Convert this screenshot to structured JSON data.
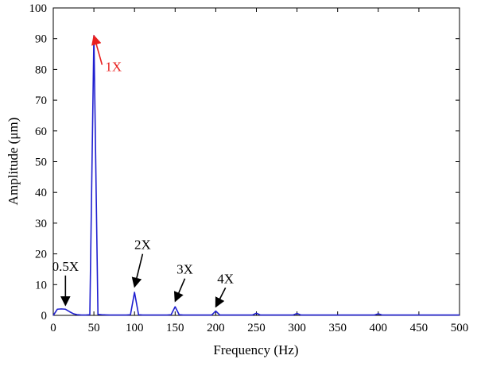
{
  "chart_data": {
    "type": "line",
    "title": "",
    "xlabel": "Frequency (Hz)",
    "ylabel": "Amplitude (μm)",
    "xlim": [
      0,
      500
    ],
    "ylim": [
      0,
      100
    ],
    "xticks": [
      "0",
      "50",
      "100",
      "150",
      "200",
      "250",
      "300",
      "350",
      "400",
      "450",
      "500"
    ],
    "yticks": [
      "0",
      "10",
      "20",
      "30",
      "40",
      "50",
      "60",
      "70",
      "80",
      "90",
      "100"
    ],
    "grid": false,
    "series": [
      {
        "color": "#1f1fd0",
        "x": [
          0,
          5,
          10,
          15,
          20,
          25,
          30,
          35,
          40,
          45,
          50,
          55,
          60,
          65,
          70,
          75,
          80,
          85,
          90,
          95,
          100,
          105,
          110,
          115,
          120,
          125,
          130,
          135,
          140,
          145,
          150,
          155,
          160,
          165,
          170,
          175,
          180,
          185,
          190,
          195,
          200,
          205,
          210,
          215,
          220,
          225,
          230,
          235,
          240,
          245,
          250,
          255,
          260,
          295,
          300,
          305,
          310,
          395,
          400,
          405,
          410,
          500
        ],
        "y": [
          0.0,
          2.0,
          2.1,
          2.0,
          1.2,
          0.5,
          0.2,
          0.1,
          0.1,
          0.2,
          91.0,
          0.3,
          0.2,
          0.15,
          0.1,
          0.1,
          0.1,
          0.1,
          0.1,
          0.2,
          7.5,
          0.2,
          0.1,
          0.1,
          0.1,
          0.1,
          0.1,
          0.1,
          0.1,
          0.2,
          2.8,
          0.2,
          0.1,
          0.1,
          0.1,
          0.1,
          0.1,
          0.1,
          0.1,
          0.1,
          1.4,
          0.1,
          0.1,
          0.1,
          0.1,
          0.1,
          0.1,
          0.1,
          0.1,
          0.1,
          0.7,
          0.1,
          0.1,
          0.1,
          0.6,
          0.1,
          0.1,
          0.1,
          0.5,
          0.1,
          0.1,
          0.1
        ]
      }
    ],
    "annotations": [
      {
        "text": "1X",
        "color": "#e8201f",
        "x": 50,
        "y": 91,
        "tx": 64,
        "ty": 81
      },
      {
        "text": "0.5X",
        "color": "#000000",
        "x": 15,
        "y": 2.5,
        "tx": 15,
        "ty": 14
      },
      {
        "text": "2X",
        "color": "#000000",
        "x": 100,
        "y": 8.5,
        "tx": 110,
        "ty": 21
      },
      {
        "text": "3X",
        "color": "#000000",
        "x": 150,
        "y": 3.8,
        "tx": 162,
        "ty": 13
      },
      {
        "text": "4X",
        "color": "#000000",
        "x": 200,
        "y": 2.0,
        "tx": 212,
        "ty": 10
      }
    ]
  }
}
